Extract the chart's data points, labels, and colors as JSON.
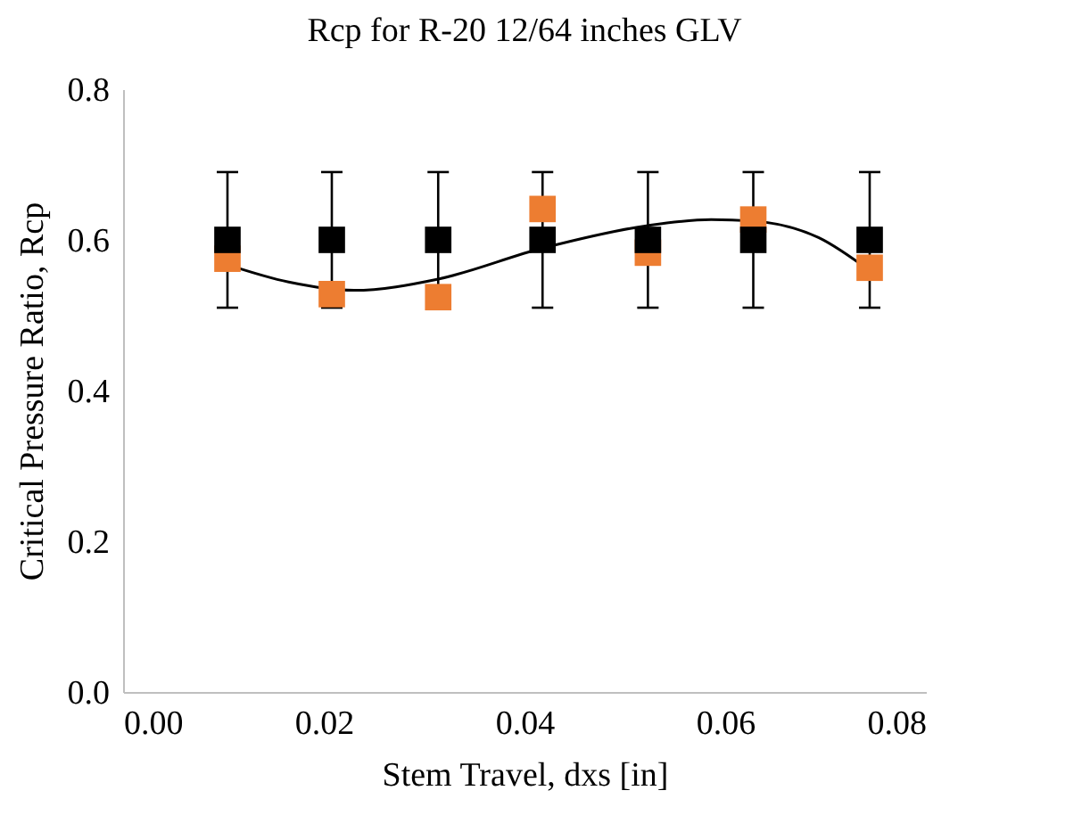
{
  "chart_data": {
    "type": "scatter",
    "title": "Rcp for R-20 12/64 inches GLV",
    "xlabel": "Stem Travel, dxs [in]",
    "ylabel": "Critical Pressure Ratio, Rcp",
    "xlim": [
      0,
      0.08
    ],
    "xticks": [
      {
        "value": 0,
        "label": "0.00"
      },
      {
        "value": 0.02,
        "label": "0.02"
      },
      {
        "value": 0.04,
        "label": "0.04"
      },
      {
        "value": 0.06,
        "label": "0.06"
      },
      {
        "value": 0.08,
        "label": "0.08"
      }
    ],
    "ylim": [
      0,
      0.8
    ],
    "yticks": [
      {
        "value": 0,
        "label": "0.0"
      },
      {
        "value": 0.2,
        "label": "0.2"
      },
      {
        "value": 0.4,
        "label": "0.4"
      },
      {
        "value": 0.6,
        "label": "0.6"
      },
      {
        "value": 0.8,
        "label": "0.8"
      }
    ],
    "marker": "square",
    "x": [
      0.0104,
      0.0208,
      0.0314,
      0.0418,
      0.0523,
      0.0628,
      0.0744
    ],
    "series": [
      {
        "color": "#000000",
        "values": [
          0.6,
          0.6,
          0.6,
          0.6,
          0.6,
          0.6,
          0.6
        ],
        "errors": [
          0.09,
          0.09,
          0.09,
          0.09,
          0.09,
          0.09,
          0.09
        ]
      },
      {
        "color": "#ed7d31",
        "values": [
          0.575,
          0.528,
          0.524,
          0.641,
          0.583,
          0.627,
          0.563
        ]
      },
      {
        "type": "line",
        "color": "#000000",
        "marker": "none",
        "x": [
          0.0104,
          0.0165,
          0.023,
          0.0314,
          0.0418,
          0.0523,
          0.0586,
          0.0628,
          0.0693,
          0.0744
        ],
        "values": [
          0.567,
          0.544,
          0.533,
          0.548,
          0.589,
          0.619,
          0.627,
          0.625,
          0.603,
          0.559
        ]
      }
    ]
  }
}
